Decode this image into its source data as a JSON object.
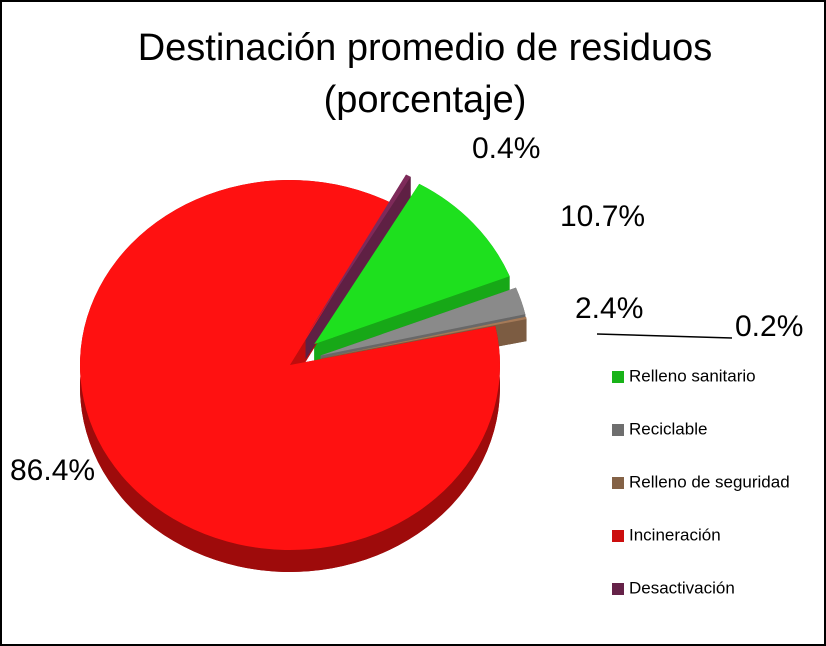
{
  "chart_data": {
    "type": "pie",
    "title": "Destinación promedio de residuos (porcentaje)",
    "categories": [
      "Relleno sanitario",
      "Reciclable",
      "Relleno de seguridad",
      "Incineración",
      "Desactivación"
    ],
    "values": [
      10.7,
      2.4,
      0.2,
      86.4,
      0.4
    ],
    "value_labels": [
      "10.7%",
      "2.4%",
      "0.2%",
      "86.4%",
      "0.4%"
    ],
    "colors": [
      "#1ee01e",
      "#8a8a8a",
      "#a57a58",
      "#ff1111",
      "#7e2a5a"
    ],
    "legend": "right"
  }
}
